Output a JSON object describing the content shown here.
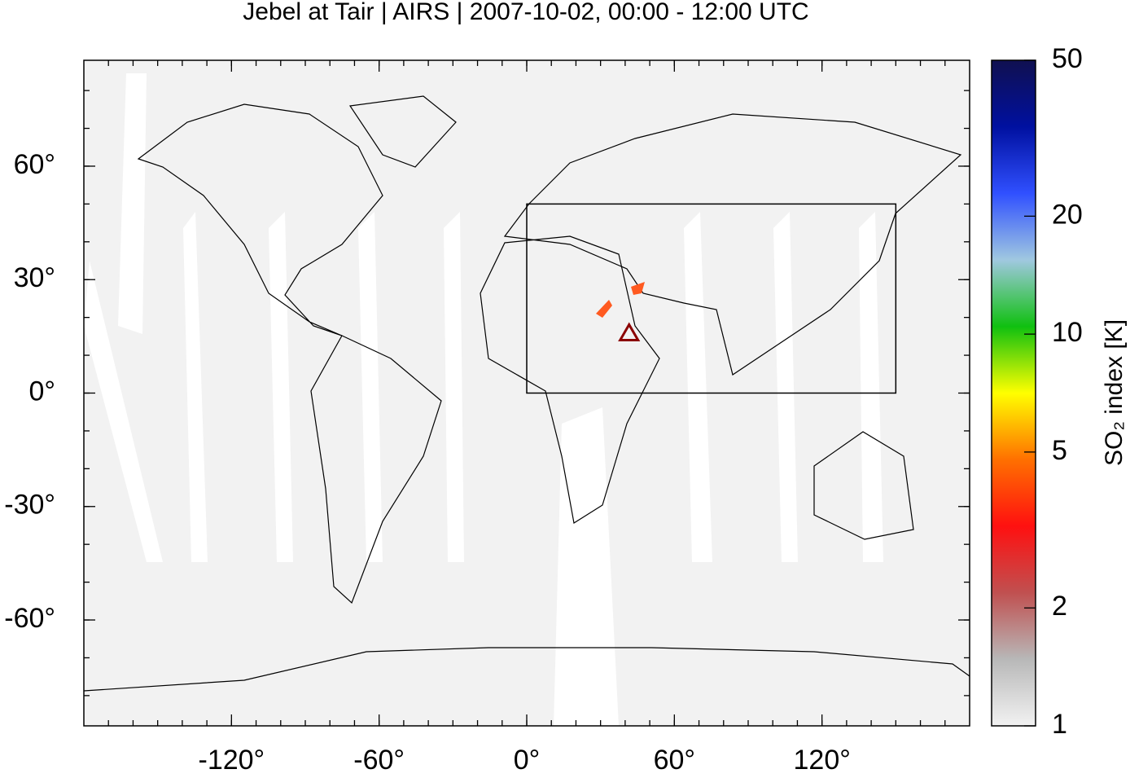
{
  "title": "Jebel at Tair | AIRS | 2007-10-02, 00:00 - 12:00 UTC",
  "map": {
    "xlim": [
      -180,
      180
    ],
    "ylim": [
      -88,
      88
    ],
    "xticks": [
      {
        "value": -120,
        "label": "-120°"
      },
      {
        "value": -60,
        "label": "-60°"
      },
      {
        "value": 0,
        "label": "0°"
      },
      {
        "value": 60,
        "label": "60°"
      },
      {
        "value": 120,
        "label": "120°"
      }
    ],
    "yticks": [
      {
        "value": 60,
        "label": "60°"
      },
      {
        "value": 30,
        "label": "30°"
      },
      {
        "value": 0,
        "label": "0°"
      },
      {
        "value": -30,
        "label": "-30°"
      },
      {
        "value": -60,
        "label": "-60°"
      }
    ],
    "region": {
      "lon": [
        0,
        150
      ],
      "lat": [
        0,
        50
      ]
    },
    "volcano": {
      "lon": 41.6,
      "lat": 15.5,
      "color": "#8b0000"
    }
  },
  "colorbar": {
    "label": "SO₂ index [K]",
    "lim": [
      1,
      50
    ],
    "log": true,
    "ticks": [
      1,
      2,
      5,
      10,
      20,
      50
    ],
    "colors": [
      "#f2f2f2",
      "#b8b8b8",
      "#c05050",
      "#ff1010",
      "#ff7000",
      "#ffff00",
      "#10c010",
      "#a0c8e0",
      "#3050ff",
      "#0010a0",
      "#101050"
    ]
  }
}
